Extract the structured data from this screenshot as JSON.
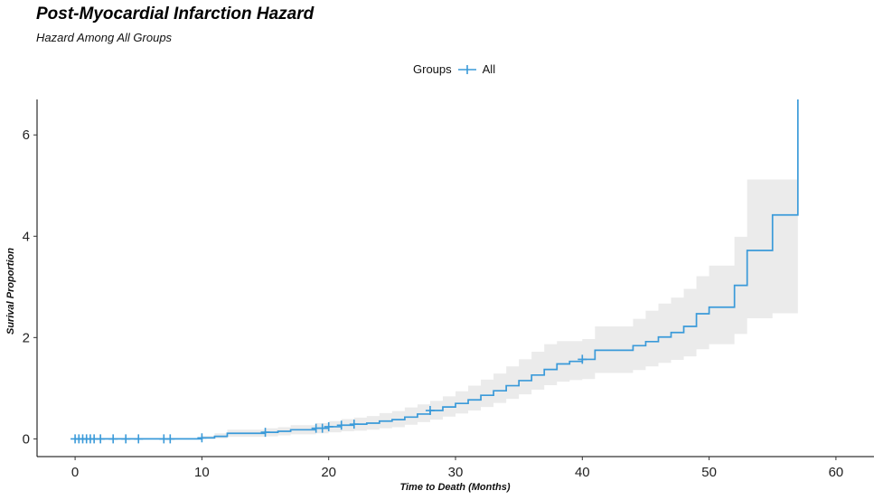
{
  "chart_data": {
    "type": "line",
    "title": "Post-Myocardial Infarction Hazard",
    "subtitle": "Hazard Among All Groups",
    "xlabel": "Time to Death (Months)",
    "ylabel": "Surival Proportion",
    "xlim": [
      -3,
      63
    ],
    "ylim": [
      -0.35,
      6.7
    ],
    "xticks": [
      0,
      10,
      20,
      30,
      40,
      50,
      60
    ],
    "yticks": [
      0,
      2,
      4,
      6
    ],
    "grid": false,
    "legend": {
      "title": "Groups",
      "position": "top",
      "entries": [
        "All"
      ]
    },
    "colors": {
      "line": "#3a9ad9",
      "band": "#ebebeb"
    },
    "series": [
      {
        "name": "All",
        "step_x": [
          0,
          10,
          11,
          12,
          15,
          16,
          17,
          19,
          20,
          21,
          22,
          23,
          24,
          25,
          26,
          27,
          28,
          29,
          30,
          31,
          32,
          33,
          34,
          35,
          36,
          37,
          38,
          39,
          40,
          41,
          44,
          45,
          46,
          47,
          48,
          49,
          50,
          52,
          53,
          55,
          57
        ],
        "step_y": [
          0,
          0.02,
          0.05,
          0.11,
          0.13,
          0.15,
          0.18,
          0.21,
          0.24,
          0.27,
          0.29,
          0.31,
          0.35,
          0.38,
          0.43,
          0.49,
          0.56,
          0.63,
          0.7,
          0.77,
          0.86,
          0.95,
          1.05,
          1.15,
          1.26,
          1.37,
          1.48,
          1.53,
          1.57,
          1.75,
          1.84,
          1.92,
          2.01,
          2.1,
          2.22,
          2.47,
          2.6,
          3.03,
          3.72,
          4.42,
          6.7
        ],
        "lower": [
          0,
          0,
          0.01,
          0.04,
          0.05,
          0.07,
          0.09,
          0.11,
          0.13,
          0.15,
          0.16,
          0.18,
          0.21,
          0.23,
          0.28,
          0.33,
          0.38,
          0.44,
          0.5,
          0.56,
          0.63,
          0.71,
          0.79,
          0.88,
          0.97,
          1.06,
          1.13,
          1.16,
          1.18,
          1.3,
          1.36,
          1.43,
          1.5,
          1.56,
          1.63,
          1.77,
          1.87,
          2.07,
          2.38,
          2.48,
          2.48
        ],
        "upper": [
          0,
          0.06,
          0.11,
          0.18,
          0.21,
          0.23,
          0.27,
          0.31,
          0.35,
          0.39,
          0.42,
          0.45,
          0.51,
          0.55,
          0.62,
          0.68,
          0.75,
          0.84,
          0.94,
          1.05,
          1.17,
          1.29,
          1.43,
          1.57,
          1.72,
          1.87,
          1.93,
          1.93,
          1.97,
          2.22,
          2.37,
          2.53,
          2.67,
          2.79,
          2.96,
          3.21,
          3.42,
          3.99,
          5.12,
          5.12,
          6.7
        ],
        "censor_x": [
          0,
          0.3,
          0.6,
          0.9,
          1.2,
          1.5,
          2,
          3,
          4,
          5,
          7,
          7.5,
          10,
          15,
          19,
          19.5,
          20,
          21,
          22,
          28,
          40
        ],
        "censor_y": [
          0,
          0,
          0,
          0,
          0,
          0,
          0,
          0,
          0,
          0,
          0,
          0,
          0.02,
          0.13,
          0.21,
          0.21,
          0.24,
          0.27,
          0.29,
          0.56,
          1.57
        ]
      }
    ]
  }
}
